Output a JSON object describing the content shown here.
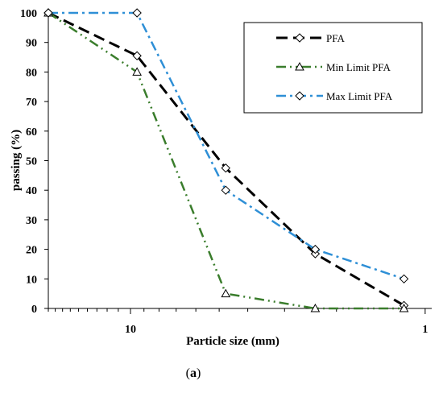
{
  "chart_data": {
    "type": "line",
    "xlabel": "Particle size (mm)",
    "ylabel": "passing (%)",
    "x_scale": "log",
    "x_reversed": true,
    "xlim": [
      19,
      0.95
    ],
    "ylim": [
      0,
      100
    ],
    "y_ticks": [
      0,
      10,
      20,
      30,
      40,
      50,
      60,
      70,
      80,
      90,
      100
    ],
    "x_ticks": [
      10,
      1
    ],
    "grid": false,
    "legend_position": "top-right",
    "series": [
      {
        "name": "PFA",
        "color": "#000000",
        "marker": "diamond",
        "points": [
          [
            19,
            100
          ],
          [
            9.5,
            85.5
          ],
          [
            4.75,
            47.5
          ],
          [
            2.36,
            18.5
          ],
          [
            1.18,
            1
          ]
        ]
      },
      {
        "name": "Min Limit PFA",
        "color": "#3a7d2c",
        "marker": "triangle",
        "points": [
          [
            19,
            100
          ],
          [
            9.5,
            80
          ],
          [
            4.75,
            5
          ],
          [
            2.36,
            0
          ],
          [
            1.18,
            0
          ]
        ]
      },
      {
        "name": "Max Limit PFA",
        "color": "#2e8fd6",
        "marker": "diamond",
        "points": [
          [
            19,
            100
          ],
          [
            9.5,
            100
          ],
          [
            4.75,
            40
          ],
          [
            2.36,
            20
          ],
          [
            1.18,
            10
          ]
        ]
      }
    ]
  },
  "caption": {
    "open": "(",
    "letter": "a",
    "close": ")"
  }
}
